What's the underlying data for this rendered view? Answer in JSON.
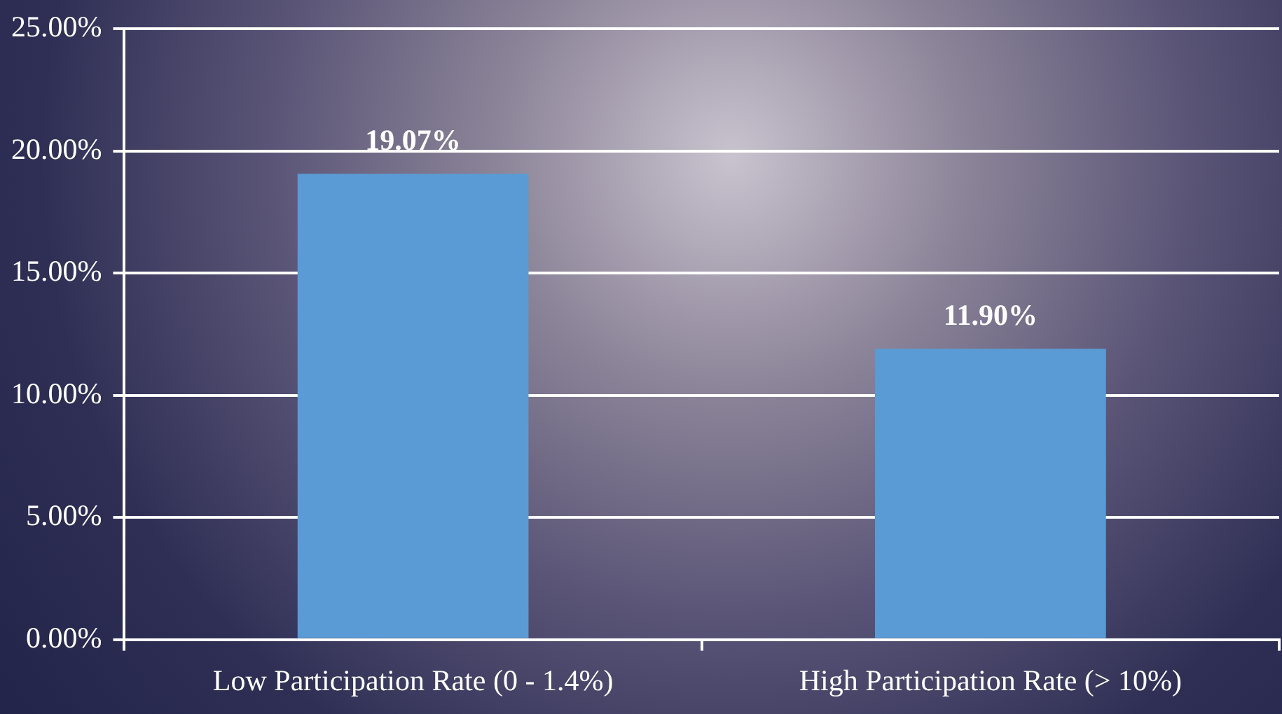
{
  "chart_data": {
    "type": "bar",
    "categories": [
      "Low Participation Rate (0 - 1.4%)",
      "High Participation Rate (> 10%)"
    ],
    "values": [
      19.07,
      11.9
    ],
    "color": "#5b9bd5",
    "value_labels": [
      "19.07%",
      "11.90%"
    ],
    "ylim": [
      0,
      25
    ],
    "yticks": [
      {
        "value": 0,
        "label": "0.00%"
      },
      {
        "value": 5,
        "label": "5.00%"
      },
      {
        "value": 10,
        "label": "10.00%"
      },
      {
        "value": 15,
        "label": "15.00%"
      },
      {
        "value": 20,
        "label": "20.00%"
      },
      {
        "value": 25,
        "label": "25.00%"
      }
    ],
    "grid": "y",
    "legend": false
  }
}
